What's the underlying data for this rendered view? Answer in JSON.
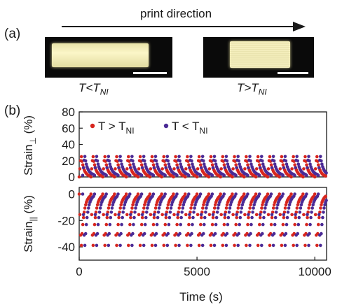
{
  "panel_a": {
    "label": "(a)",
    "arrow_label": "print direction",
    "left_caption": {
      "main": "T<T",
      "sub": "NI"
    },
    "right_caption": {
      "main": "T>T",
      "sub": "NI"
    }
  },
  "panel_b": {
    "label": "(b)"
  },
  "colors": {
    "hot": "#d7261e",
    "cold": "#4b2b96"
  },
  "chart_data": [
    {
      "type": "scatter",
      "ylabel": "Strain⊥ (%)",
      "ylim": [
        0,
        80
      ],
      "yticks": [
        0,
        20,
        40,
        60,
        80
      ],
      "xlim": [
        0,
        10500
      ],
      "grid": false,
      "legend_position": "top",
      "series": [
        {
          "name": "T > TNI",
          "color": "#d7261e",
          "cycles": {
            "start": 0,
            "period": 500,
            "count": 21,
            "min": 0,
            "max": 27
          }
        },
        {
          "name": "T < TNI",
          "color": "#4b2b96",
          "cycles": {
            "start": 150,
            "period": 500,
            "count": 21,
            "min": 2,
            "max": 27
          }
        }
      ]
    },
    {
      "type": "scatter",
      "ylabel": "Strain|| (%)",
      "ylim": [
        -50,
        5
      ],
      "yticks": [
        -40,
        -20,
        0
      ],
      "xlabel": "Time (s)",
      "xlim": [
        0,
        10500
      ],
      "xticks": [
        0,
        5000,
        10000
      ],
      "grid": false,
      "series": [
        {
          "name": "T > TNI",
          "color": "#d7261e",
          "cycles": {
            "start": 0,
            "period": 500,
            "count": 21,
            "min": -42,
            "max": 0
          }
        },
        {
          "name": "T < TNI",
          "color": "#4b2b96",
          "cycles": {
            "start": 150,
            "period": 500,
            "count": 21,
            "min": -42,
            "max": 0
          }
        }
      ]
    }
  ],
  "legend": {
    "hot": {
      "main": "T > T",
      "sub": "NI"
    },
    "cold": {
      "main": "T < T",
      "sub": "NI"
    }
  },
  "axes": {
    "top_ylabel": {
      "main": "Strain",
      "sub": "⊥",
      "unit": " (%)"
    },
    "bottom_ylabel": {
      "main": "Strain",
      "sub": "||",
      "unit": " (%)"
    },
    "xlabel": "Time (s)"
  }
}
